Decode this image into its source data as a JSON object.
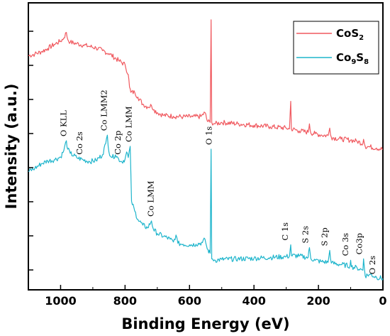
{
  "chart_data": {
    "type": "line",
    "xlabel": "Binding Energy (eV)",
    "ylabel": "Intensity (a.u.)",
    "xlim": [
      1100,
      0
    ],
    "x_reversed": true,
    "x_ticks": [
      1000,
      800,
      600,
      400,
      200,
      0
    ],
    "y_ticks_labeled": false,
    "grid": false,
    "legend_position": "top-right",
    "series": [
      {
        "name": "CoS2",
        "legend_base": "CoS",
        "legend_sub": "2",
        "color": "#f0595f",
        "points": [
          [
            1100,
            6.72
          ],
          [
            1080,
            6.78
          ],
          [
            1060,
            6.86
          ],
          [
            1040,
            6.98
          ],
          [
            1020,
            7.12
          ],
          [
            1000,
            7.24
          ],
          [
            990,
            7.35
          ],
          [
            982,
            7.55
          ],
          [
            978,
            7.3
          ],
          [
            970,
            7.2
          ],
          [
            950,
            7.15
          ],
          [
            930,
            7.1
          ],
          [
            910,
            7.05
          ],
          [
            890,
            7.0
          ],
          [
            870,
            6.9
          ],
          [
            850,
            6.8
          ],
          [
            820,
            6.55
          ],
          [
            800,
            6.4
          ],
          [
            790,
            6.05
          ],
          [
            786,
            5.6
          ],
          [
            782,
            5.42
          ],
          [
            770,
            5.42
          ],
          [
            760,
            5.25
          ],
          [
            745,
            5.0
          ],
          [
            730,
            4.9
          ],
          [
            718,
            4.95
          ],
          [
            710,
            4.8
          ],
          [
            700,
            4.7
          ],
          [
            680,
            4.6
          ],
          [
            650,
            4.57
          ],
          [
            620,
            4.55
          ],
          [
            590,
            4.55
          ],
          [
            565,
            4.56
          ],
          [
            552,
            4.7
          ],
          [
            545,
            4.4
          ],
          [
            536,
            4.35
          ],
          [
            533,
            8.0
          ],
          [
            531,
            4.35
          ],
          [
            520,
            4.3
          ],
          [
            500,
            4.35
          ],
          [
            450,
            4.3
          ],
          [
            400,
            4.25
          ],
          [
            350,
            4.2
          ],
          [
            300,
            4.15
          ],
          [
            290,
            4.12
          ],
          [
            286,
            5.1
          ],
          [
            284,
            4.12
          ],
          [
            260,
            4.05
          ],
          [
            232,
            4.0
          ],
          [
            228,
            4.3
          ],
          [
            224,
            3.98
          ],
          [
            210,
            3.95
          ],
          [
            190,
            3.9
          ],
          [
            170,
            3.88
          ],
          [
            165,
            4.15
          ],
          [
            160,
            3.82
          ],
          [
            130,
            3.76
          ],
          [
            100,
            3.72
          ],
          [
            80,
            3.68
          ],
          [
            62,
            3.6
          ],
          [
            60,
            3.75
          ],
          [
            55,
            3.5
          ],
          [
            40,
            3.48
          ],
          [
            20,
            3.44
          ],
          [
            0,
            3.4
          ]
        ]
      },
      {
        "name": "Co9S8",
        "legend_base1": "Co",
        "legend_sub1": "9",
        "legend_base2": "S",
        "legend_sub2": "8",
        "color": "#1fb5cc",
        "points": [
          [
            1100,
            2.6
          ],
          [
            1080,
            2.72
          ],
          [
            1060,
            2.88
          ],
          [
            1040,
            2.98
          ],
          [
            1020,
            3.02
          ],
          [
            1000,
            3.12
          ],
          [
            990,
            3.35
          ],
          [
            982,
            3.7
          ],
          [
            978,
            3.4
          ],
          [
            970,
            3.25
          ],
          [
            950,
            3.1
          ],
          [
            930,
            3.02
          ],
          [
            910,
            2.96
          ],
          [
            890,
            3.0
          ],
          [
            870,
            3.2
          ],
          [
            860,
            3.6
          ],
          [
            855,
            3.9
          ],
          [
            850,
            3.3
          ],
          [
            840,
            3.1
          ],
          [
            830,
            3.2
          ],
          [
            820,
            3.05
          ],
          [
            810,
            2.95
          ],
          [
            800,
            3.05
          ],
          [
            795,
            3.3
          ],
          [
            790,
            3.1
          ],
          [
            784,
            3.5
          ],
          [
            780,
            1.55
          ],
          [
            770,
            1.2
          ],
          [
            760,
            0.9
          ],
          [
            745,
            0.7
          ],
          [
            730,
            0.6
          ],
          [
            718,
            0.85
          ],
          [
            712,
            0.55
          ],
          [
            700,
            0.4
          ],
          [
            680,
            0.3
          ],
          [
            660,
            0.2
          ],
          [
            650,
            0.1
          ],
          [
            642,
            0.35
          ],
          [
            636,
            0.05
          ],
          [
            620,
            0.02
          ],
          [
            600,
            0.0
          ],
          [
            580,
            0.02
          ],
          [
            560,
            0.08
          ],
          [
            552,
            0.2
          ],
          [
            545,
            -0.15
          ],
          [
            536,
            -0.3
          ],
          [
            533,
            3.4
          ],
          [
            531,
            -0.5
          ],
          [
            520,
            -0.55
          ],
          [
            500,
            -0.52
          ],
          [
            450,
            -0.5
          ],
          [
            400,
            -0.48
          ],
          [
            350,
            -0.45
          ],
          [
            300,
            -0.42
          ],
          [
            290,
            -0.4
          ],
          [
            286,
            0.0
          ],
          [
            284,
            -0.38
          ],
          [
            260,
            -0.4
          ],
          [
            232,
            -0.45
          ],
          [
            228,
            -0.1
          ],
          [
            224,
            -0.48
          ],
          [
            210,
            -0.55
          ],
          [
            190,
            -0.6
          ],
          [
            170,
            -0.62
          ],
          [
            165,
            -0.2
          ],
          [
            160,
            -0.65
          ],
          [
            130,
            -0.7
          ],
          [
            102,
            -0.75
          ],
          [
            100,
            -0.55
          ],
          [
            98,
            -0.78
          ],
          [
            80,
            -0.82
          ],
          [
            62,
            -0.9
          ],
          [
            60,
            -0.5
          ],
          [
            55,
            -1.1
          ],
          [
            40,
            -1.05
          ],
          [
            20,
            -1.15
          ],
          [
            0,
            -1.2
          ]
        ]
      }
    ],
    "annotations": [
      {
        "text": "O KLL",
        "x": 978,
        "y": 3.7
      },
      {
        "text": "Co 2s",
        "x": 928,
        "y": 3.05
      },
      {
        "text": "Co LMM2",
        "x": 852,
        "y": 3.9
      },
      {
        "text": "Co 2p",
        "x": 810,
        "y": 3.05
      },
      {
        "text": "Co LMM",
        "x": 775,
        "y": 3.5
      },
      {
        "text": "Co LMM",
        "x": 707,
        "y": 0.85
      },
      {
        "text": "O 1s",
        "x": 527,
        "y": 3.4
      },
      {
        "text": "C 1s",
        "x": 290,
        "y": 0.0
      },
      {
        "text": "S 2s",
        "x": 228,
        "y": -0.1
      },
      {
        "text": "S 2p",
        "x": 168,
        "y": -0.2
      },
      {
        "text": "Co 3s",
        "x": 103,
        "y": -0.55
      },
      {
        "text": "Co3p",
        "x": 61,
        "y": -0.5
      },
      {
        "text": "O 2s",
        "x": 20,
        "y": -1.2
      }
    ]
  }
}
